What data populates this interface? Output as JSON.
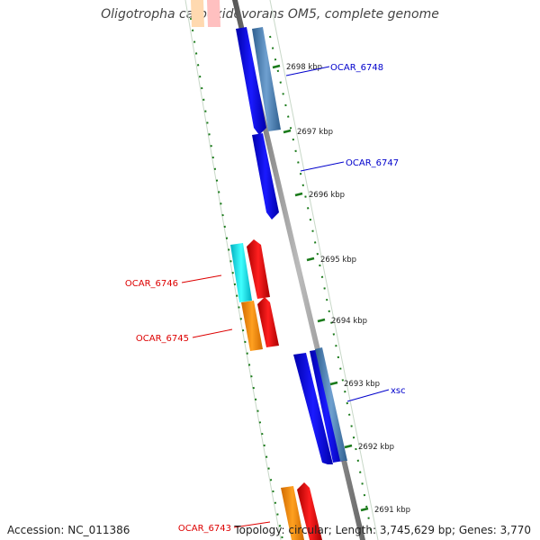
{
  "title": "Oligotropha carboxidovorans OM5, complete genome",
  "footer": {
    "accession": "Accession: NC_011386",
    "summary": "Topology: circular; Length: 3,745,629 bp; Genes: 3,770"
  },
  "ticks": [
    "2698 kbp",
    "2697 kbp",
    "2696 kbp",
    "2695 kbp",
    "2694 kbp",
    "2693 kbp",
    "2692 kbp",
    "2691 kbp"
  ],
  "genes": [
    {
      "label": "OCAR_6748",
      "strand": "forward",
      "color": "#0000cc"
    },
    {
      "label": "OCAR_6747",
      "strand": "forward",
      "color": "#0000cc"
    },
    {
      "label": "xsc",
      "strand": "forward",
      "color": "#0000cc"
    },
    {
      "label": "OCAR_6746",
      "strand": "reverse",
      "color": "#dd0000"
    },
    {
      "label": "OCAR_6745",
      "strand": "reverse",
      "color": "#dd0000"
    },
    {
      "label": "OCAR_6743",
      "strand": "reverse",
      "color": "#dd0000"
    }
  ],
  "colors": {
    "backbone": "#888888",
    "forward_cds": "#0000ee",
    "forward_rna": "#4682b4",
    "reverse_cds": "#ee0000",
    "reverse_orf_cyan": "#00e5ee",
    "reverse_orf_orange": "#ff8c00",
    "tick": "#1a7a1a"
  }
}
